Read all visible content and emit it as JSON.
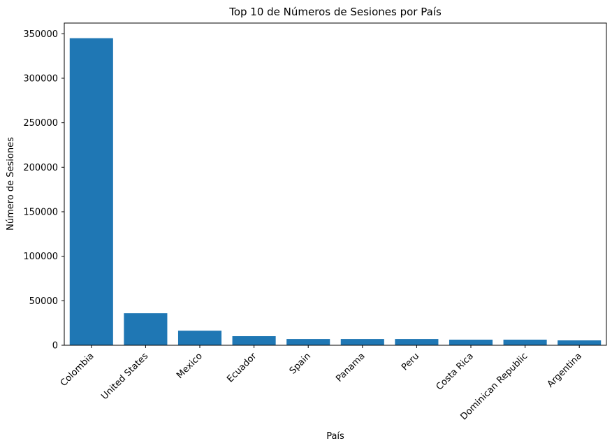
{
  "chart_data": {
    "type": "bar",
    "title": "Top 10 de Números de Sesiones por País",
    "x_label": "País",
    "y_label": "Número de Sesiones",
    "categories": [
      "Colombia",
      "United States",
      "Mexico",
      "Ecuador",
      "Spain",
      "Panama",
      "Peru",
      "Costa Rica",
      "Dominican Republic",
      "Argentina"
    ],
    "values": [
      345000,
      36000,
      16400,
      10200,
      7000,
      7000,
      7000,
      6300,
      6300,
      5500
    ],
    "color": "#1f77b4",
    "ylim": [
      0,
      362000
    ],
    "yticks": [
      0,
      50000,
      100000,
      150000,
      200000,
      250000,
      300000,
      350000
    ],
    "grid": false
  }
}
